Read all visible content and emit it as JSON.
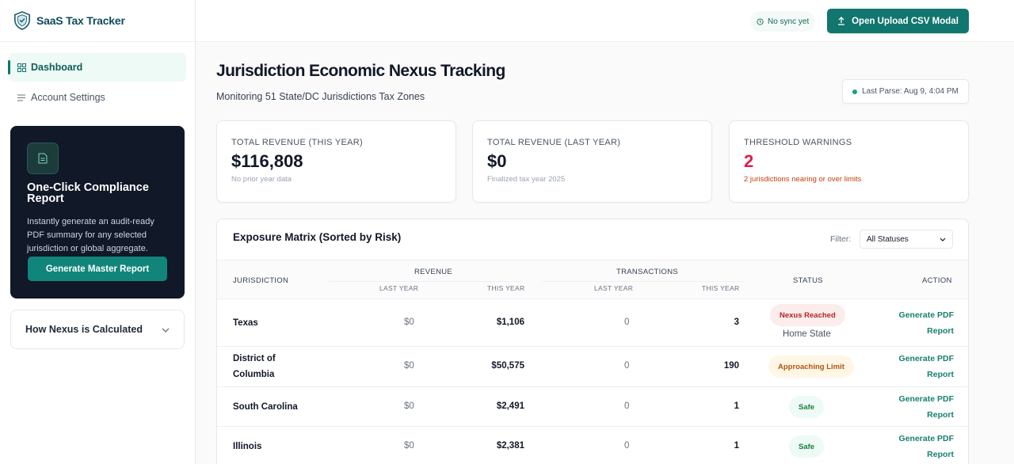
{
  "brand": {
    "name": "SaaS Tax Tracker",
    "logo_icon": "shield-check-icon"
  },
  "sidebar": {
    "items": [
      {
        "label": "Dashboard",
        "icon": "grid-icon",
        "active": true
      },
      {
        "label": "Account Settings",
        "icon": "list-icon",
        "active": false
      }
    ],
    "promo": {
      "icon": "document-icon",
      "title": "One-Click Compliance Report",
      "description": "Instantly generate an audit-ready PDF summary for any selected jurisdiction or global aggregate.",
      "button_label": "Generate Master Report"
    },
    "accordion": {
      "title": "How Nexus is Calculated",
      "icon": "chevron-down-icon"
    }
  },
  "topbar": {
    "sync_status": "No sync yet",
    "upload_button": "Open Upload CSV Modal"
  },
  "main": {
    "title": "Jurisdiction Economic Nexus Tracking",
    "subtitle": "Monitoring 51 State/DC Jurisdictions Tax Zones",
    "last_parse": "Last Parse: Aug 9, 4:04 PM"
  },
  "cards": [
    {
      "label": "TOTAL REVENUE (THIS YEAR)",
      "value": "$116,808",
      "sub": "No prior year data"
    },
    {
      "label": "TOTAL REVENUE (LAST YEAR)",
      "value": "$0",
      "sub": "Finalized tax year 2025"
    },
    {
      "label": "THRESHOLD WARNINGS",
      "value": "2",
      "sub": "2 jurisdictions nearing or over limits"
    }
  ],
  "matrix": {
    "title": "Exposure Matrix (Sorted by Risk)",
    "filter_label": "Filter:",
    "filter_value": "All Statuses",
    "headers": {
      "jurisdiction": "JURISDICTION",
      "revenue": "REVENUE",
      "transactions": "TRANSACTIONS",
      "status": "STATUS",
      "action": "ACTION",
      "last_year": "LAST YEAR",
      "this_year": "THIS YEAR"
    },
    "rows": [
      {
        "jurisdiction": "Texas",
        "rev_last": "$0",
        "rev_this": "$1,106",
        "tx_last": "0",
        "tx_this": "3",
        "status": "Nexus Reached",
        "status_note": "Home State",
        "action": "Generate PDF Report"
      },
      {
        "jurisdiction": "District of Columbia",
        "rev_last": "$0",
        "rev_this": "$50,575",
        "tx_last": "0",
        "tx_this": "190",
        "status": "Approaching Limit",
        "status_note": "",
        "action": "Generate PDF Report"
      },
      {
        "jurisdiction": "South Carolina",
        "rev_last": "$0",
        "rev_this": "$2,491",
        "tx_last": "0",
        "tx_this": "1",
        "status": "Safe",
        "status_note": "",
        "action": "Generate PDF Report"
      },
      {
        "jurisdiction": "Illinois",
        "rev_last": "$0",
        "rev_this": "$2,381",
        "tx_last": "0",
        "tx_this": "1",
        "status": "Safe",
        "status_note": "",
        "action": "Generate PDF Report"
      }
    ]
  },
  "colors": {
    "accent": "#11766e",
    "danger": "#e11d48",
    "warning": "#b45309",
    "safe": "#15803d"
  }
}
